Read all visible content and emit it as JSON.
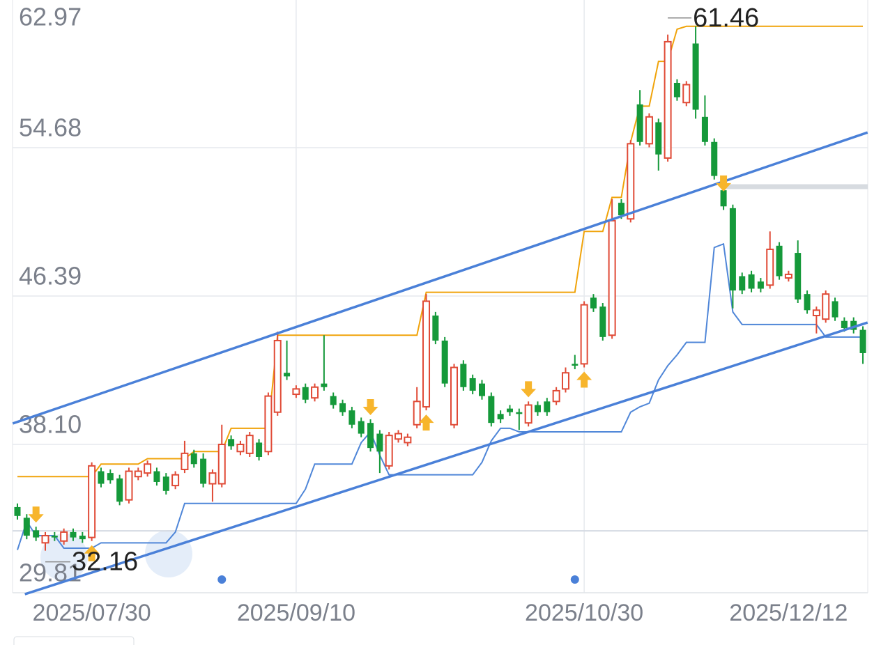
{
  "chart_data": {
    "type": "candlestick",
    "categories": [
      null,
      null,
      null,
      null,
      null,
      null,
      null,
      null,
      "2025/07/30",
      null,
      null,
      null,
      null,
      null,
      null,
      null,
      null,
      null,
      null,
      null,
      null,
      null,
      null,
      null,
      null,
      null,
      null,
      null,
      null,
      null,
      "2025/09/10",
      null,
      null,
      null,
      null,
      null,
      null,
      null,
      null,
      null,
      null,
      null,
      null,
      null,
      null,
      null,
      null,
      null,
      null,
      null,
      null,
      null,
      null,
      null,
      null,
      null,
      null,
      null,
      null,
      null,
      null,
      "2025/10/30",
      null,
      null,
      null,
      null,
      null,
      null,
      null,
      null,
      null,
      null,
      null,
      null,
      null,
      null,
      null,
      null,
      null,
      null,
      null,
      null,
      null,
      "2025/12/12",
      null,
      null,
      null,
      null,
      null,
      null,
      null,
      null
    ],
    "open": [
      34.6,
      34.0,
      33.3,
      32.6,
      33.0,
      32.7,
      33.2,
      33.0,
      32.9,
      36.6,
      36.5,
      36.2,
      35.0,
      36.3,
      36.5,
      36.6,
      36.3,
      35.8,
      36.7,
      37.6,
      37.3,
      35.9,
      35.9,
      38.4,
      37.7,
      37.6,
      38.2,
      37.7,
      39.9,
      42.1,
      40.9,
      41.3,
      40.7,
      41.5,
      40.8,
      40.4,
      40.0,
      39.4,
      39.3,
      38.7,
      36.9,
      38.4,
      38.2,
      39.2,
      40.2,
      45.3,
      43.9,
      39.2,
      42.6,
      41.8,
      41.5,
      40.8,
      39.8,
      40.1,
      39.9,
      39.3,
      40.3,
      40.5,
      40.5,
      41.2,
      42.6,
      42.6,
      46.3,
      45.8,
      44.2,
      51.6,
      50.7,
      57.1,
      54.9,
      56.1,
      54.1,
      58.3,
      57.2,
      60.5,
      56.4,
      55.0,
      52.3,
      51.3,
      47.5,
      47.6,
      47.2,
      47.0,
      49.2,
      47.4,
      48.8,
      46.5,
      45.3,
      45.1,
      46.1,
      45.0,
      45.0,
      44.5
    ],
    "close": [
      34.1,
      33.0,
      32.9,
      33.0,
      32.9,
      33.2,
      32.9,
      32.8,
      36.9,
      35.9,
      36.1,
      34.9,
      36.6,
      36.6,
      37.0,
      36.0,
      35.5,
      36.4,
      37.6,
      37.0,
      35.9,
      36.5,
      38.1,
      38.0,
      38.1,
      38.6,
      37.4,
      40.8,
      43.9,
      41.9,
      41.2,
      40.6,
      41.3,
      41.3,
      40.3,
      39.9,
      39.2,
      38.7,
      37.9,
      37.7,
      38.6,
      38.7,
      38.5,
      40.5,
      46.1,
      43.9,
      41.5,
      42.4,
      41.3,
      41.1,
      40.8,
      39.3,
      39.5,
      39.9,
      39.8,
      40.3,
      39.9,
      39.9,
      41.1,
      42.1,
      42.5,
      45.9,
      45.7,
      44.1,
      50.6,
      50.9,
      54.9,
      55.0,
      56.4,
      54.3,
      60.6,
      57.5,
      58.2,
      56.8,
      55.0,
      53.1,
      51.4,
      46.7,
      46.7,
      46.8,
      46.8,
      49.0,
      47.5,
      47.6,
      46.2,
      45.6,
      45.6,
      46.5,
      45.2,
      44.6,
      44.5,
      43.2
    ],
    "low": [
      33.9,
      32.8,
      32.7,
      32.16,
      32.7,
      32.5,
      32.7,
      32.6,
      32.7,
      35.7,
      35.9,
      34.7,
      34.8,
      36.1,
      36.3,
      35.8,
      35.3,
      35.6,
      36.5,
      36.8,
      35.7,
      34.9,
      35.7,
      37.8,
      37.5,
      37.4,
      37.2,
      37.5,
      39.7,
      41.7,
      40.7,
      40.4,
      40.5,
      41.1,
      40.1,
      39.7,
      39.0,
      38.5,
      37.7,
      36.5,
      36.7,
      38.2,
      38.0,
      39.0,
      40.0,
      43.7,
      41.3,
      39.0,
      41.1,
      40.9,
      40.6,
      39.1,
      39.3,
      39.7,
      38.9,
      39.1,
      39.7,
      39.7,
      40.3,
      41.0,
      42.3,
      42.4,
      45.5,
      43.9,
      44.0,
      50.7,
      50.5,
      54.8,
      54.7,
      53.4,
      53.9,
      57.3,
      57.0,
      56.3,
      54.8,
      52.9,
      51.2,
      45.7,
      46.5,
      46.6,
      46.6,
      46.8,
      47.3,
      47.2,
      46.0,
      45.4,
      44.3,
      44.9,
      45.0,
      44.4,
      44.3,
      42.6
    ],
    "high": [
      34.8,
      34.2,
      33.5,
      33.2,
      33.2,
      33.4,
      33.4,
      33.2,
      37.1,
      36.8,
      36.7,
      36.4,
      36.8,
      36.8,
      37.2,
      36.8,
      36.5,
      36.6,
      38.3,
      37.8,
      37.6,
      36.7,
      39.2,
      38.6,
      38.3,
      38.8,
      38.4,
      41.0,
      44.4,
      43.9,
      41.4,
      41.5,
      41.5,
      44.2,
      41.0,
      40.6,
      40.2,
      39.6,
      39.5,
      38.9,
      38.8,
      38.9,
      38.7,
      41.3,
      46.5,
      45.5,
      44.1,
      42.6,
      42.8,
      42.0,
      41.7,
      41.0,
      40.0,
      40.3,
      40.1,
      40.5,
      40.5,
      40.7,
      41.3,
      42.4,
      43.1,
      46.1,
      46.5,
      46.0,
      51.8,
      51.8,
      55.1,
      57.9,
      56.6,
      56.3,
      61.0,
      58.5,
      58.4,
      61.46,
      57.6,
      55.2,
      52.0,
      51.5,
      47.7,
      47.8,
      47.4,
      50.0,
      49.4,
      47.8,
      49.5,
      46.7,
      45.8,
      46.7,
      46.3,
      45.2,
      45.2,
      44.7
    ],
    "up_color": "#e04a36",
    "down_color": "#15993a",
    "lines": [
      {
        "color": "#f0a30a",
        "values": [
          36.3,
          36.3,
          36.3,
          36.3,
          36.3,
          36.3,
          36.3,
          36.3,
          36.3,
          37.0,
          37.0,
          37.0,
          37.0,
          37.0,
          37.3,
          37.3,
          37.3,
          37.3,
          37.3,
          37.7,
          37.7,
          37.7,
          37.7,
          39.0,
          39.0,
          39.0,
          39.0,
          39.0,
          44.2,
          44.2,
          44.2,
          44.2,
          44.2,
          44.2,
          44.2,
          44.2,
          44.2,
          44.2,
          44.2,
          44.2,
          44.2,
          44.2,
          44.2,
          44.2,
          46.6,
          46.6,
          46.6,
          46.6,
          46.6,
          46.6,
          46.6,
          46.6,
          46.6,
          46.6,
          46.6,
          46.6,
          46.6,
          46.6,
          46.6,
          46.6,
          46.6,
          50.0,
          50.0,
          50.0,
          51.9,
          51.9,
          55.0,
          57.0,
          57.0,
          59.5,
          59.5,
          61.3,
          61.46,
          61.46,
          61.46,
          61.46,
          61.46,
          61.46,
          61.46,
          61.46,
          61.46,
          61.46,
          61.46,
          61.46,
          61.46,
          61.46,
          61.46,
          61.46,
          61.46,
          61.46,
          61.46,
          61.46
        ]
      },
      {
        "color": "#4f86d8",
        "values": [
          32.2,
          33.8,
          33.0,
          33.0,
          33.0,
          32.3,
          32.3,
          32.3,
          32.3,
          32.6,
          32.6,
          32.6,
          32.6,
          32.6,
          32.6,
          32.6,
          32.6,
          33.2,
          34.8,
          34.8,
          34.8,
          34.8,
          34.8,
          34.8,
          34.8,
          34.8,
          34.8,
          34.8,
          34.8,
          34.8,
          34.8,
          35.6,
          37.0,
          37.0,
          37.0,
          37.0,
          37.0,
          38.2,
          38.8,
          37.5,
          36.4,
          36.4,
          36.4,
          36.4,
          36.4,
          36.4,
          36.4,
          36.4,
          36.4,
          36.4,
          37.1,
          38.3,
          39.0,
          39.0,
          38.8,
          38.8,
          38.8,
          38.8,
          38.8,
          38.8,
          38.8,
          38.8,
          38.8,
          38.8,
          38.8,
          38.8,
          39.9,
          40.2,
          40.4,
          41.7,
          42.5,
          43.1,
          43.8,
          43.8,
          43.8,
          49.1,
          49.3,
          45.5,
          44.8,
          44.8,
          44.8,
          44.8,
          44.8,
          44.8,
          44.8,
          44.8,
          44.8,
          44.1,
          44.1,
          44.1,
          44.1,
          44.1
        ]
      }
    ],
    "trendlines": [
      {
        "color": "#4a80d8",
        "x": [
          -0.5,
          91.5
        ],
        "values": [
          39.27,
          55.53
        ]
      },
      {
        "color": "#4a80d8",
        "x": [
          0.8,
          91.5
        ],
        "values": [
          29.73,
          44.91
        ]
      }
    ],
    "reference_line": {
      "value": 33.27,
      "color": "#d5dae2"
    },
    "level_band": {
      "value": 52.5,
      "from": 76,
      "color": "#d7dbe0"
    },
    "buy_signals": [
      8,
      44,
      61
    ],
    "sell_signals": [
      2,
      38,
      55,
      76
    ],
    "signal_color": "#f7b52c",
    "event_dots": [
      22,
      60
    ],
    "max_label": {
      "index": 73,
      "value": 61.46
    },
    "min_label": {
      "index": 3,
      "value": 32.16
    },
    "ylim": [
      29.81,
      62.97
    ],
    "yticks": [
      29.81,
      {
        "value": 38.1,
        "label": "38.10"
      },
      46.39,
      54.68,
      62.97
    ],
    "xgrid_at": [
      30,
      61
    ],
    "grid": true
  }
}
